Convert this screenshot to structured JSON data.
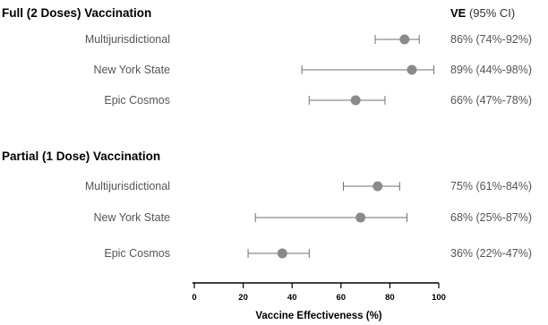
{
  "chart_data": {
    "type": "forest",
    "header": {
      "bold": "VE",
      "rest": " (95% CI)"
    },
    "xlabel": "Vaccine Effectiveness (%)",
    "xlim": [
      0,
      100
    ],
    "xticks": [
      0,
      20,
      40,
      60,
      80,
      100
    ],
    "groups": [
      {
        "title": "Full (2 Doses) Vaccination",
        "rows": [
          {
            "label": "Multijurisdictional",
            "ve": 86,
            "lo": 74,
            "hi": 92,
            "text": "86% (74%-92%)"
          },
          {
            "label": "New York State",
            "ve": 89,
            "lo": 44,
            "hi": 98,
            "text": "89% (44%-98%)"
          },
          {
            "label": "Epic Cosmos",
            "ve": 66,
            "lo": 47,
            "hi": 78,
            "text": "66% (47%-78%)"
          }
        ]
      },
      {
        "title": "Partial (1 Dose) Vaccination",
        "rows": [
          {
            "label": "Multijurisdictional",
            "ve": 75,
            "lo": 61,
            "hi": 84,
            "text": "75% (61%-84%)"
          },
          {
            "label": "New York State",
            "ve": 68,
            "lo": 25,
            "hi": 87,
            "text": "68% (25%-87%)"
          },
          {
            "label": "Epic Cosmos",
            "ve": 36,
            "lo": 22,
            "hi": 47,
            "text": "36% (22%-47%)"
          }
        ]
      }
    ]
  }
}
